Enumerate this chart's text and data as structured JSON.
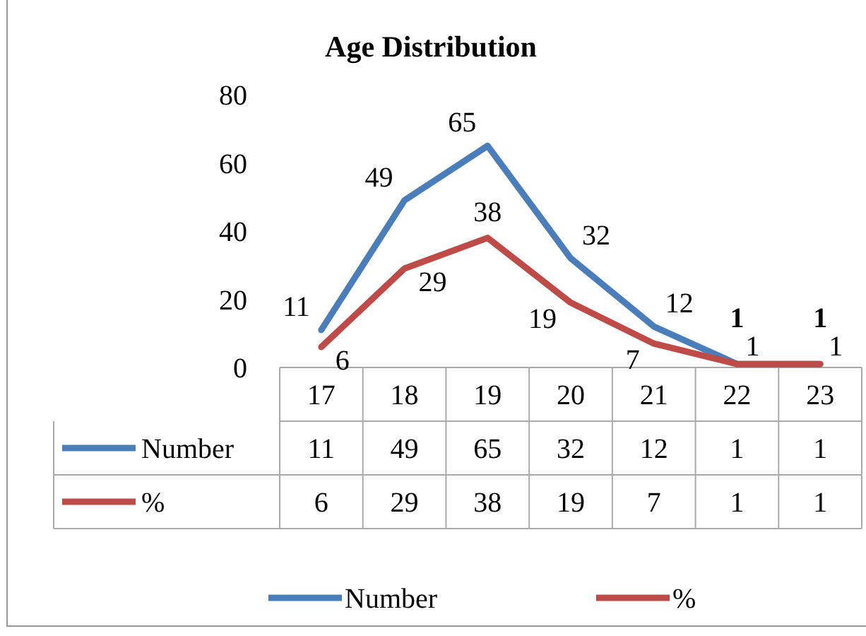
{
  "chart_data": {
    "type": "line",
    "title": "Age Distribution",
    "categories": [
      "17",
      "18",
      "19",
      "20",
      "21",
      "22",
      "23"
    ],
    "series": [
      {
        "name": "Number",
        "color": "#4a7ebb",
        "values": [
          11,
          49,
          65,
          32,
          12,
          1,
          1
        ]
      },
      {
        "name": "%",
        "color": "#be4b48",
        "values": [
          6,
          29,
          38,
          19,
          7,
          1,
          1
        ]
      }
    ],
    "annotations": [
      {
        "text": "11",
        "x": "17",
        "y": 11
      },
      {
        "text": "49",
        "x": "18",
        "y": 49
      },
      {
        "text": "65",
        "x": "19",
        "y": 65
      },
      {
        "text": "32",
        "x": "20",
        "y": 32
      },
      {
        "text": "12",
        "x": "21",
        "y": 12
      },
      {
        "text": "1",
        "x": "22",
        "y": 1
      },
      {
        "text": "1",
        "x": "23",
        "y": 1
      },
      {
        "text": "6",
        "x": "17",
        "y": 6
      },
      {
        "text": "29",
        "x": "18",
        "y": 29
      },
      {
        "text": "38",
        "x": "19",
        "y": 38
      },
      {
        "text": "19",
        "x": "20",
        "y": 19
      },
      {
        "text": "7",
        "x": "21",
        "y": 7
      },
      {
        "text": "1",
        "x": "22",
        "y": 1
      },
      {
        "text": "1",
        "x": "23",
        "y": 1
      }
    ],
    "ylim": [
      0,
      80
    ],
    "yticks": [
      0,
      20,
      40,
      60,
      80
    ],
    "grid": false,
    "legend": "bottom",
    "data_labels": true,
    "marker": "none",
    "line_style": "solid"
  }
}
